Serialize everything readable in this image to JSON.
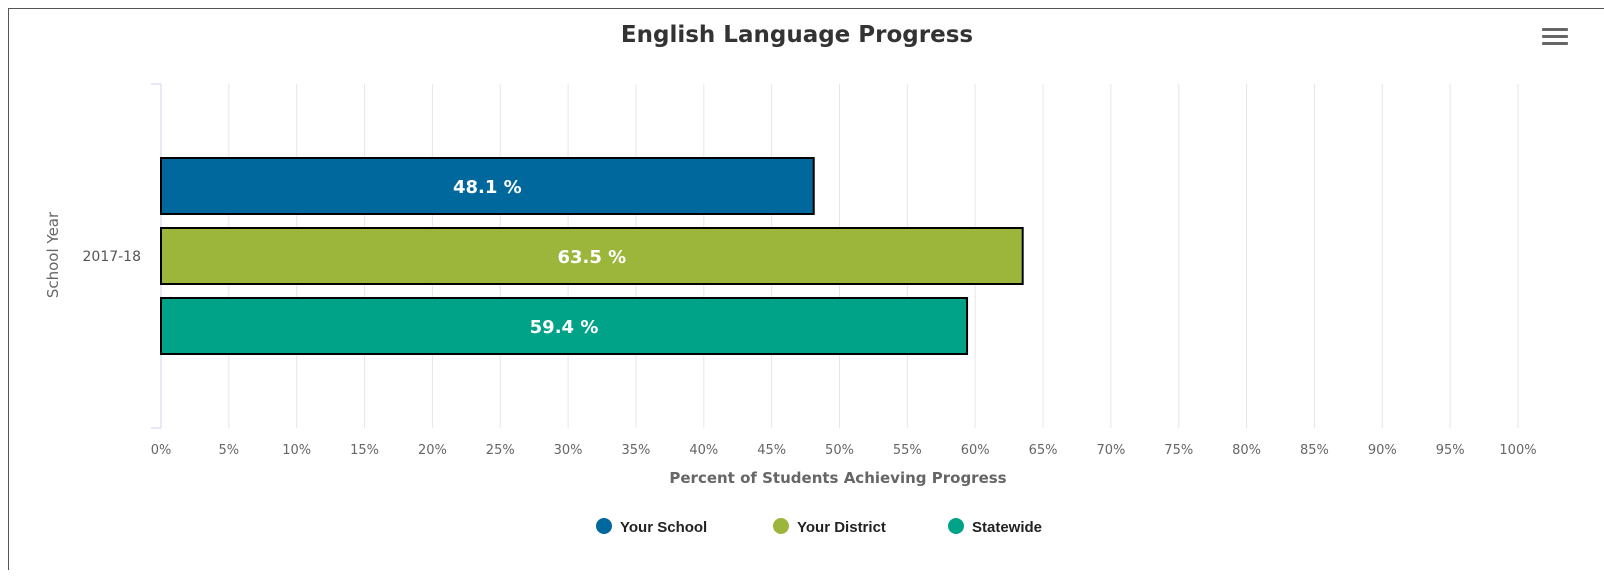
{
  "chart_data": {
    "type": "bar",
    "orientation": "horizontal",
    "title": "English Language Progress",
    "xlabel": "Percent of Students Achieving Progress",
    "ylabel": "School Year",
    "categories": [
      "2017-18"
    ],
    "series": [
      {
        "name": "Your School",
        "values": [
          48.1
        ],
        "color": "#00689d",
        "label": "48.1 %"
      },
      {
        "name": "Your District",
        "values": [
          63.5
        ],
        "color": "#9cb53b",
        "label": "63.5 %"
      },
      {
        "name": "Statewide",
        "values": [
          59.4
        ],
        "color": "#00a388",
        "label": "59.4 %"
      }
    ],
    "xlim": [
      0,
      100
    ],
    "ticks": [
      0,
      5,
      10,
      15,
      20,
      25,
      30,
      35,
      40,
      45,
      50,
      55,
      60,
      65,
      70,
      75,
      80,
      85,
      90,
      95,
      100
    ],
    "tick_suffix": "%",
    "grid": true,
    "legend": "bottom-center"
  },
  "menu": {
    "icon": "hamburger-menu-icon"
  }
}
